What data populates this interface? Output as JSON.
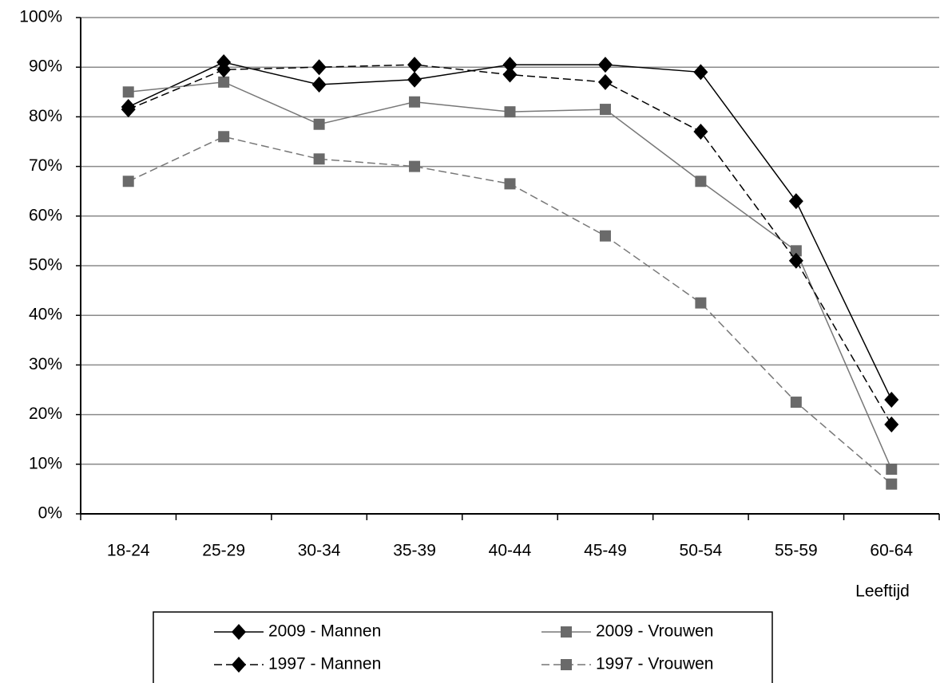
{
  "chart_data": {
    "type": "line",
    "x_label": "Leeftijd",
    "categories": [
      "18-24",
      "25-29",
      "30-34",
      "35-39",
      "40-44",
      "45-49",
      "50-54",
      "55-59",
      "60-64"
    ],
    "series": [
      {
        "name": "2009 - Mannen",
        "color": "#000000",
        "dashed": false,
        "marker": "diamond",
        "values": [
          82,
          91,
          86.5,
          87.5,
          90.5,
          90.5,
          89,
          63,
          23
        ]
      },
      {
        "name": "2009 - Vrouwen",
        "color": "#777777",
        "dashed": false,
        "marker": "square",
        "values": [
          85,
          87,
          78.5,
          83,
          81,
          81.5,
          67,
          53,
          9
        ]
      },
      {
        "name": "1997 - Mannen",
        "color": "#000000",
        "dashed": true,
        "marker": "diamond",
        "values": [
          81.5,
          89.5,
          90,
          90.5,
          88.5,
          87,
          77,
          51,
          18
        ]
      },
      {
        "name": "1997 - Vrouwen",
        "color": "#777777",
        "dashed": true,
        "marker": "square",
        "values": [
          67,
          76,
          71.5,
          70,
          66.5,
          56,
          42.5,
          22.5,
          6
        ]
      }
    ],
    "ylim": [
      0,
      100
    ],
    "yticks": [
      {
        "value": 0,
        "label": "0%"
      },
      {
        "value": 10,
        "label": "10%"
      },
      {
        "value": 20,
        "label": "20%"
      },
      {
        "value": 30,
        "label": "30%"
      },
      {
        "value": 40,
        "label": "40%"
      },
      {
        "value": 50,
        "label": "50%"
      },
      {
        "value": 60,
        "label": "60%"
      },
      {
        "value": 70,
        "label": "70%"
      },
      {
        "value": 80,
        "label": "80%"
      },
      {
        "value": 90,
        "label": "90%"
      },
      {
        "value": 100,
        "label": "100%"
      }
    ],
    "grid": true
  }
}
